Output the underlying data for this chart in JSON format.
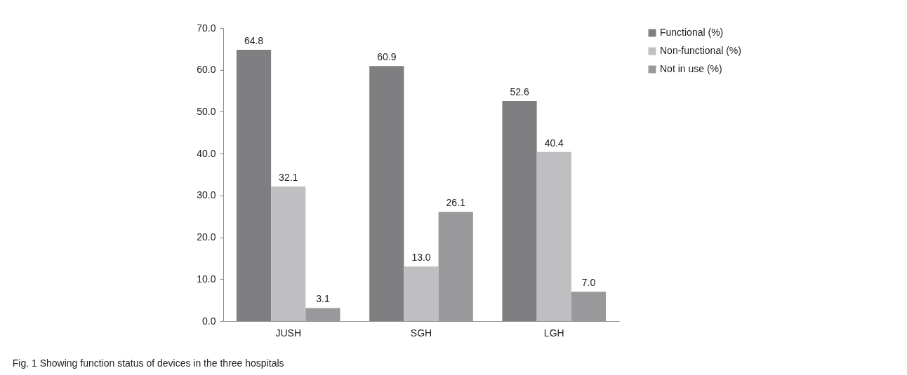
{
  "chart_data": {
    "type": "bar",
    "categories": [
      "JUSH",
      "SGH",
      "LGH"
    ],
    "series": [
      {
        "name": "Functional (%)",
        "color": "#7f7f82",
        "values": [
          64.8,
          60.9,
          52.6
        ],
        "value_labels": [
          "64.8",
          "60.9",
          "52.6"
        ]
      },
      {
        "name": "Non-functional (%)",
        "color": "#bfbfc1",
        "values": [
          32.1,
          13.0,
          40.4
        ],
        "value_labels": [
          "32.1",
          "13.0",
          "40.4"
        ]
      },
      {
        "name": "Not in use (%)",
        "color": "#99999b",
        "values": [
          3.1,
          26.1,
          7.0
        ],
        "value_labels": [
          "3.1",
          "26.1",
          "7.0"
        ]
      }
    ],
    "ylim": [
      0,
      70
    ],
    "yticks": [
      {
        "value": 0,
        "label": "0.0"
      },
      {
        "value": 10,
        "label": "10.0"
      },
      {
        "value": 20,
        "label": "20.0"
      },
      {
        "value": 30,
        "label": "30.0"
      },
      {
        "value": 40,
        "label": "40.0"
      },
      {
        "value": 50,
        "label": "50.0"
      },
      {
        "value": 60,
        "label": "60.0"
      },
      {
        "value": 70,
        "label": "70.0"
      }
    ],
    "grid": false,
    "legend": "top right",
    "annotations": [
      "Fig. 1 Showing function status of devices in the three hospitals"
    ]
  }
}
